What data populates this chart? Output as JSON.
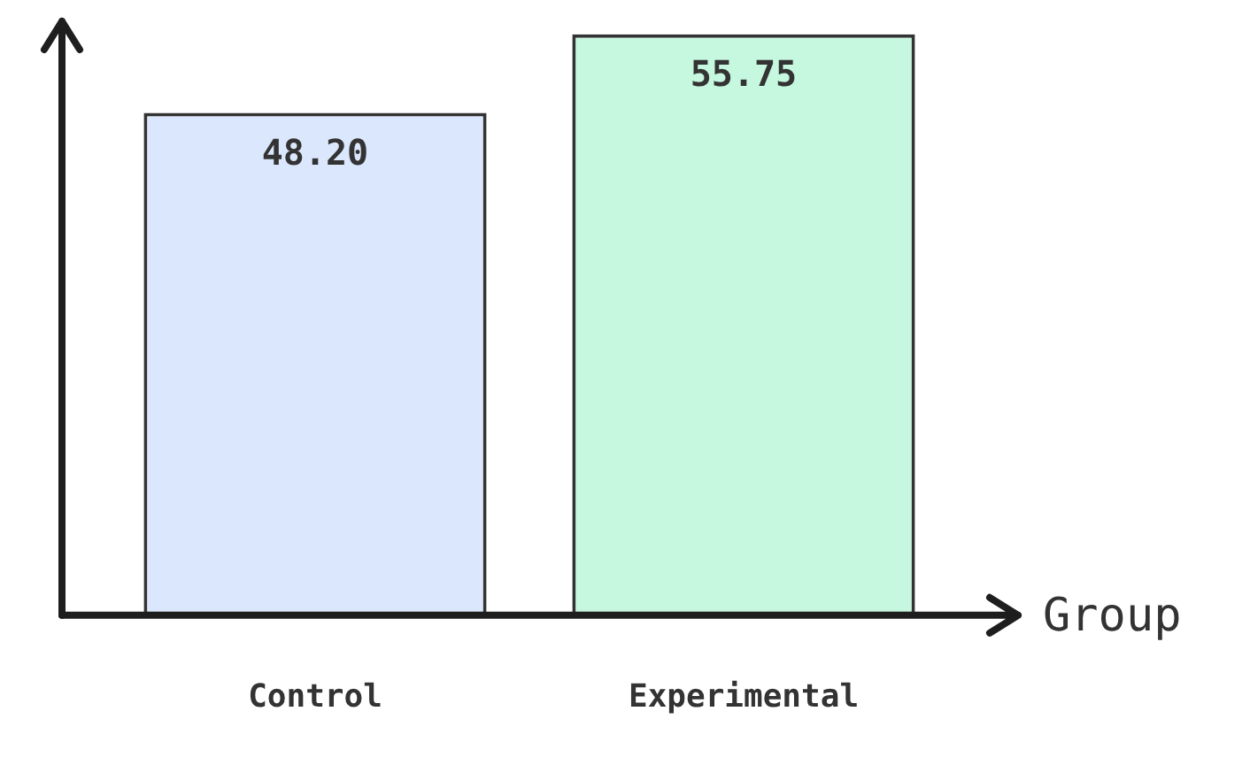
{
  "chart_data": {
    "type": "bar",
    "xlabel": "Group",
    "categories": [
      "Control",
      "Experimental"
    ],
    "values": [
      48.2,
      55.75
    ],
    "colors": [
      "#dbe7fc",
      "#c6f7df"
    ],
    "value_labels": [
      "48.20",
      "55.75"
    ],
    "ylim": [
      0,
      57
    ],
    "grid": false,
    "legend": false,
    "tick_labels": "x"
  }
}
